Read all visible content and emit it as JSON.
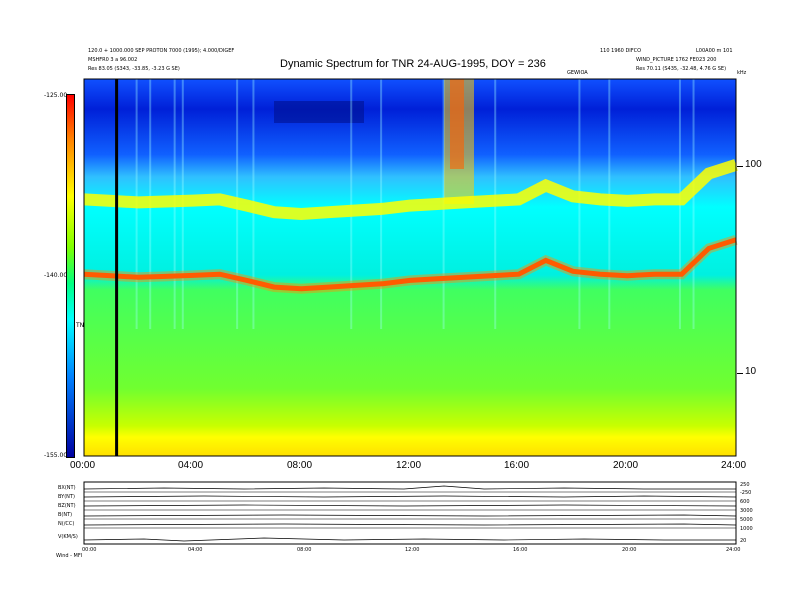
{
  "header": {
    "title": "Dynamic Spectrum for TNR 24-AUG-1995, DOY = 236",
    "left_line1": "120.0 + 1000.000 SEP PROTON 7000 (1995); 4.000/DIGEF",
    "left_line2": "MSHFR0 3 a 96.002",
    "left_line3": "Res    83.05 (S343, -33.85, -3.23 G SE)",
    "right_line1": "110 1960 DIFCO",
    "right_line2": "L00A00 m 101",
    "right_line3": "WIND_PICTURE 1762 FE023 200",
    "right_line4": "Res    70.11 (S435, -32.48, 4.76 G SE)",
    "center_label": "GEWIOA",
    "corner_label": "kHz"
  },
  "colorbar": {
    "ticks": [
      "-125.00",
      "-140.00",
      "-155.00"
    ],
    "label": "TNR"
  },
  "chart_data": {
    "type": "heatmap",
    "title": "Dynamic Spectrum for TNR 24-AUG-1995, DOY = 236",
    "xlabel": "",
    "ylabel": "kHz",
    "x_ticks": [
      "00:00",
      "04:00",
      "08:00",
      "12:00",
      "16:00",
      "20:00",
      "24:00"
    ],
    "y_ticks": [
      "100",
      "10"
    ],
    "y_scale": "log",
    "xlim": [
      0,
      24
    ],
    "color_scale_range": [
      -155,
      -125
    ],
    "plasma_line_hours": [
      0,
      1,
      2,
      3,
      4,
      5,
      6,
      7,
      8,
      9,
      10,
      11,
      12,
      13,
      14,
      15,
      16,
      17,
      18,
      19,
      20,
      21,
      22,
      23,
      24
    ],
    "plasma_line_khz": [
      30,
      29.5,
      29,
      29.3,
      29.6,
      30,
      28,
      26,
      25.5,
      26,
      26.5,
      27,
      28,
      28.5,
      29,
      29.5,
      30,
      35,
      31,
      30,
      29.5,
      30,
      30,
      40,
      44
    ],
    "cursor_hour": 1.2
  },
  "bottom_panels": {
    "labels": [
      "BX(NT)",
      "BY(NT)",
      "BZ(NT)",
      "B(NT)",
      "N(/CC)",
      "V(KM/S)"
    ],
    "right_ticks": [
      "250",
      "-250",
      "600",
      "3000",
      "5000",
      "1000",
      "20"
    ],
    "x_ticks": [
      "00:00",
      "04:00",
      "08:00",
      "12:00",
      "16:00",
      "20:00",
      "24:00"
    ],
    "footer": "Wind -  MFI"
  }
}
